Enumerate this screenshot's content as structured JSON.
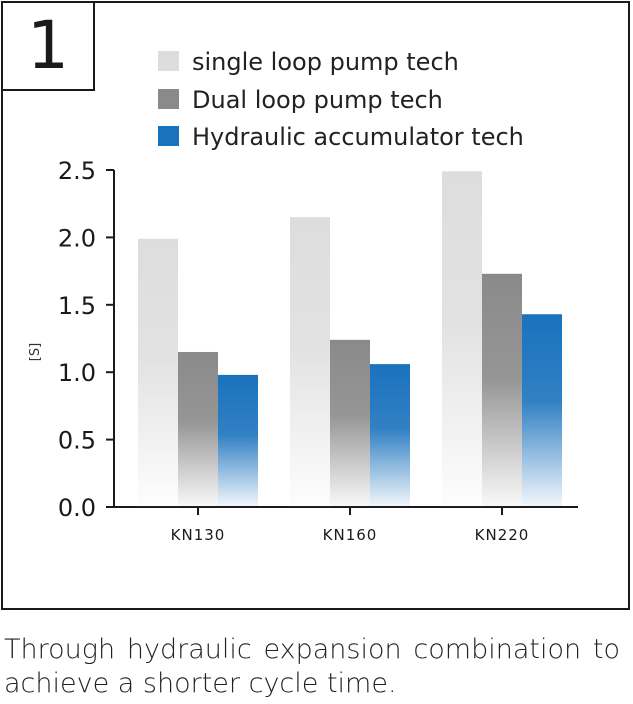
{
  "panel_number": "1",
  "caption": "Through hydraulic expansion combination to achieve a shorter cycle time.",
  "colors": {
    "single": "#dddddd",
    "dual": "#8a8a8a",
    "hydraulic": "#1a72bd",
    "axis": "#1a1a1a"
  },
  "chart_data": {
    "type": "bar",
    "categories": [
      "KN130",
      "KN160",
      "KN220"
    ],
    "series": [
      {
        "name": "single loop pump tech",
        "values": [
          1.99,
          2.15,
          2.49
        ]
      },
      {
        "name": "Dual loop pump tech",
        "values": [
          1.15,
          1.24,
          1.73
        ]
      },
      {
        "name": "Hydraulic accumulator tech",
        "values": [
          0.98,
          1.06,
          1.43
        ]
      }
    ],
    "ylabel": "[S]",
    "ylim": [
      0,
      2.5
    ],
    "yticks": [
      "0.0",
      "0.5",
      "1.0",
      "1.5",
      "2.0",
      "2.5"
    ],
    "legend": "top",
    "grid": false
  }
}
